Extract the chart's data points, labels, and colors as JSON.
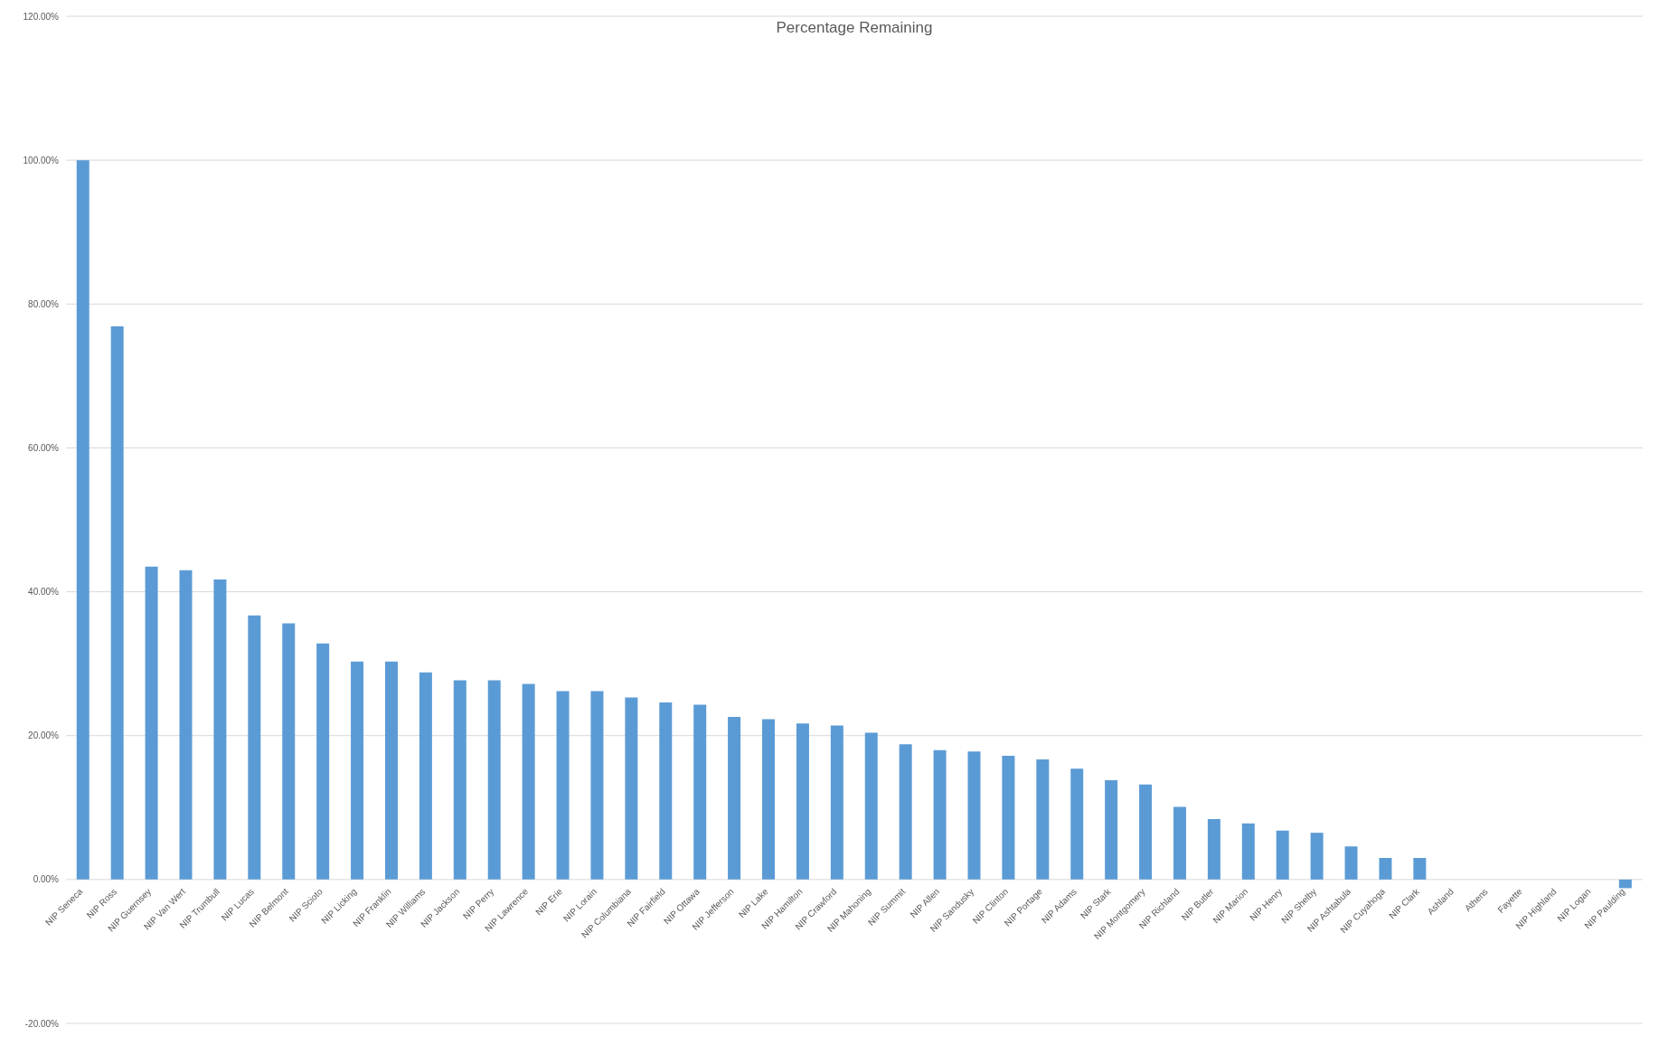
{
  "chart_data": {
    "type": "bar",
    "title": "Percentage Remaining",
    "categories": [
      "NIP Seneca",
      "NIP Ross",
      "NIP Guernsey",
      "NIP Van Wert",
      "NIP Trumbull",
      "NIP Lucas",
      "NIP Belmont",
      "NIP Scioto",
      "NIP Licking",
      "NIP Franklin",
      "NIP Williams",
      "NIP Jackson",
      "NIP Perry",
      "NIP Lawrence",
      "NIP Erie",
      "NIP Lorain",
      "NIP Columbiana",
      "NIP Fairfield",
      "NIP Ottawa",
      "NIP Jefferson",
      "NIP Lake",
      "NIP Hamilton",
      "NIP Crawford",
      "NIP Mahoning",
      "NIP Summit",
      "NIP Allen",
      "NIP Sandusky",
      "NIP Clinton",
      "NIP Portage",
      "NIP Adams",
      "NIP Stark",
      "NIP Montgomery",
      "NIP Richland",
      "NIP Butler",
      "NIP Marion",
      "NIP Henry",
      "NIP Shelby",
      "NIP Ashtabula",
      "NIP Cuyahoga",
      "NIP Clark",
      "Ashland",
      "Athens",
      "Fayette",
      "NIP Highland",
      "NIP Logan",
      "NIP Paulding"
    ],
    "values": [
      100,
      76.9,
      43.5,
      43.0,
      41.7,
      36.7,
      35.6,
      32.8,
      30.3,
      30.3,
      28.8,
      27.7,
      27.7,
      27.2,
      26.2,
      26.2,
      25.3,
      24.6,
      24.3,
      22.6,
      22.3,
      21.7,
      21.4,
      20.4,
      18.8,
      18.0,
      17.8,
      17.2,
      16.7,
      15.4,
      13.8,
      13.2,
      10.1,
      8.4,
      7.8,
      6.8,
      6.5,
      4.6,
      3.0,
      3.0,
      0,
      0,
      0,
      0,
      0,
      -1.2
    ],
    "color": "#5b9bd5",
    "ylim": [
      -20,
      120
    ],
    "yticks": [
      {
        "value": -20,
        "label": "-20.00%"
      },
      {
        "value": 0,
        "label": "0.00%"
      },
      {
        "value": 20,
        "label": "20.00%"
      },
      {
        "value": 40,
        "label": "40.00%"
      },
      {
        "value": 60,
        "label": "60.00%"
      },
      {
        "value": 80,
        "label": "80.00%"
      },
      {
        "value": 100,
        "label": "100.00%"
      },
      {
        "value": 120,
        "label": "120.00%"
      }
    ],
    "grid": "y"
  }
}
